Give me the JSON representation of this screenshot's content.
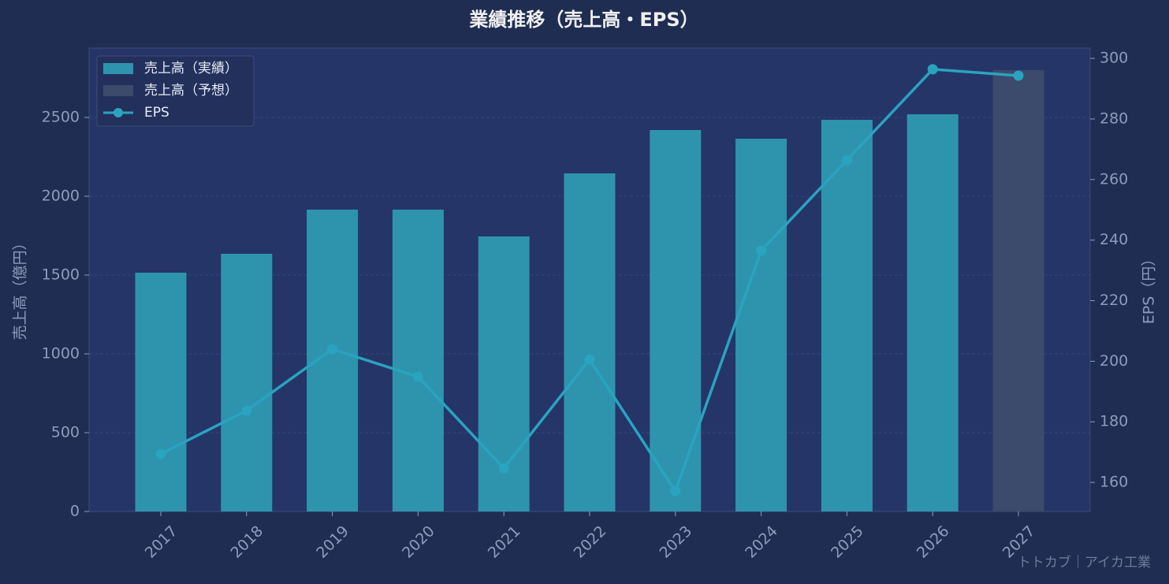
{
  "chart_data": {
    "type": "bar",
    "title": "業績推移（売上高・EPS）",
    "categories": [
      "2017",
      "2018",
      "2019",
      "2020",
      "2021",
      "2022",
      "2023",
      "2024",
      "2025",
      "2026",
      "2027"
    ],
    "series": [
      {
        "name": "売上高（実績）",
        "type": "bar",
        "color": "#2e94ad",
        "values": [
          1515,
          1635,
          1915,
          1915,
          1745,
          2145,
          2420,
          2365,
          2485,
          2520,
          null
        ]
      },
      {
        "name": "売上高（予想）",
        "type": "bar",
        "color": "#3c4a6b",
        "values": [
          null,
          null,
          null,
          null,
          null,
          null,
          null,
          null,
          null,
          null,
          2800
        ]
      },
      {
        "name": "EPS",
        "type": "line",
        "axis": "y2",
        "color": "#2aa3bf",
        "values": [
          169.4,
          183.7,
          204,
          194.9,
          164.7,
          200.6,
          157.1,
          236.5,
          266.4,
          296.4,
          294.3
        ]
      }
    ],
    "ylabel": "売上高（億円）",
    "y2label": "EPS（円）",
    "ylim": [
      0,
      2940
    ],
    "yticks": [
      0,
      500,
      1000,
      1500,
      2000,
      2500
    ],
    "y2lim": [
      150.4,
      303.4
    ],
    "y2ticks": [
      160,
      180,
      200,
      220,
      240,
      260,
      280,
      300
    ],
    "grid": true,
    "legend": "upper left",
    "watermark": "トトカブ｜アイカ工業"
  }
}
